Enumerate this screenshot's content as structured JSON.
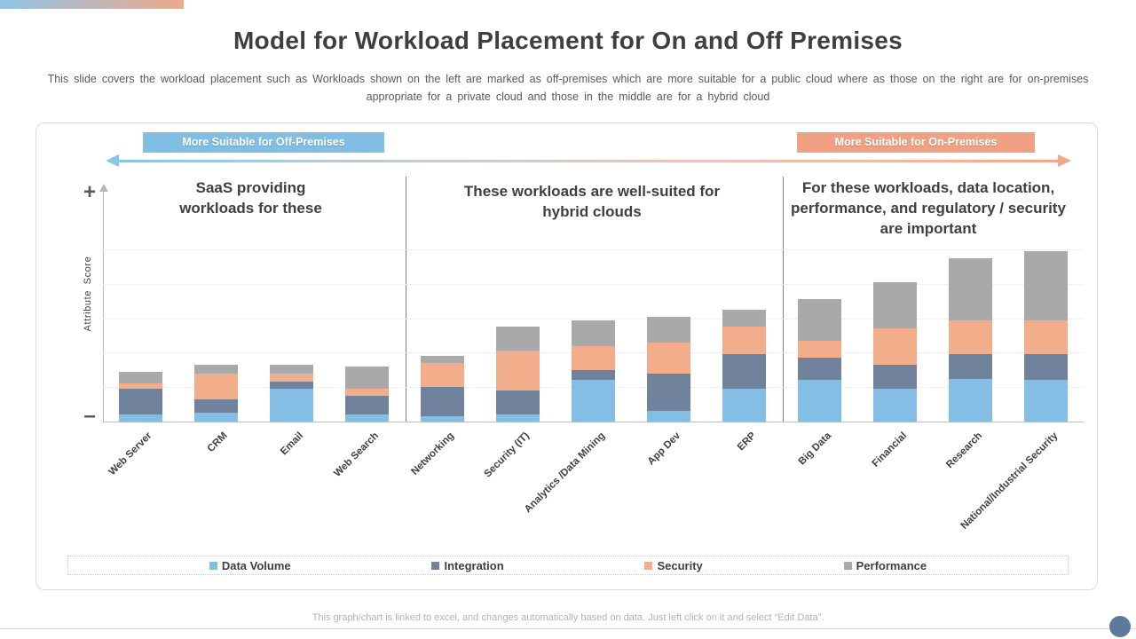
{
  "slide": {
    "title": "Model for Workload Placement for On and Off Premises",
    "subtitle_line1": "This slide covers the workload placement such as Workloads shown on the left are marked as off-premises which are more suitable for a public cloud where as those on the right are for on-premises",
    "subtitle_line2": "appropriate for a private cloud and those in the middle are for a hybrid cloud",
    "footer": "This graph/chart is linked to excel, and changes automatically based on data. Just left click on it and select “Edit Data”."
  },
  "banners": {
    "off_premises": "More Suitable for Off-Premises",
    "on_premises": "More Suitable for On-Premises"
  },
  "sections": [
    {
      "title": "SaaS providing workloads for these"
    },
    {
      "title": "These workloads are well-suited for hybrid clouds"
    },
    {
      "title": "For these workloads, data location, performance, and regulatory / security are important"
    }
  ],
  "axis": {
    "y_label": "Attribute Score",
    "plus": "+",
    "minus": "–"
  },
  "chart_data": {
    "type": "bar",
    "stacked": true,
    "title": "",
    "xlabel": "",
    "ylabel": "Attribute Score",
    "ylim": [
      0,
      10
    ],
    "gridlines": 5,
    "grid": true,
    "legend_position": "bottom",
    "y_tick_labels_visible": false,
    "categories": [
      "Web Server",
      "CRM",
      "Email",
      "Web Search",
      "Networking",
      "Security (IT)",
      "Analytics /Data Mining",
      "App Dev",
      "ERP",
      "Big Data",
      "Financial",
      "Research",
      "National/Industrial Security"
    ],
    "groups": [
      {
        "label": "SaaS providing workloads for these",
        "category_indexes": [
          0,
          1,
          2,
          3
        ]
      },
      {
        "label": "These workloads are well-suited for hybrid clouds",
        "category_indexes": [
          4,
          5,
          6,
          7,
          8
        ]
      },
      {
        "label": "For these workloads, data location, performance, and regulatory / security are important",
        "category_indexes": [
          9,
          10,
          11,
          12
        ]
      }
    ],
    "series": [
      {
        "name": "Data Volume",
        "color": "#85BEE4",
        "values": [
          0.4,
          0.5,
          1.9,
          0.4,
          0.3,
          0.4,
          2.4,
          0.6,
          1.9,
          2.4,
          1.9,
          2.5,
          2.4
        ]
      },
      {
        "name": "Integration",
        "color": "#71839C",
        "values": [
          1.5,
          0.8,
          0.4,
          1.1,
          1.7,
          1.4,
          0.6,
          2.2,
          2.0,
          1.3,
          1.4,
          1.4,
          1.5
        ]
      },
      {
        "name": "Security",
        "color": "#F2AE8B",
        "values": [
          0.3,
          1.5,
          0.5,
          0.4,
          1.4,
          2.3,
          1.4,
          1.8,
          1.6,
          1.0,
          2.1,
          2.0,
          2.0
        ]
      },
      {
        "name": "Performance",
        "color": "#A9A9A9",
        "values": [
          0.7,
          0.5,
          0.5,
          1.3,
          0.4,
          1.4,
          1.5,
          1.5,
          1.0,
          2.4,
          2.7,
          3.6,
          4.0
        ]
      }
    ]
  },
  "decorations": {
    "accent_gradient_from": "#8FC4E8",
    "accent_gradient_to": "#EFA98A",
    "banner_blue": "#7FBFE3",
    "banner_orange": "#F0A183",
    "corner_circle_color": "#5C7B9A"
  }
}
